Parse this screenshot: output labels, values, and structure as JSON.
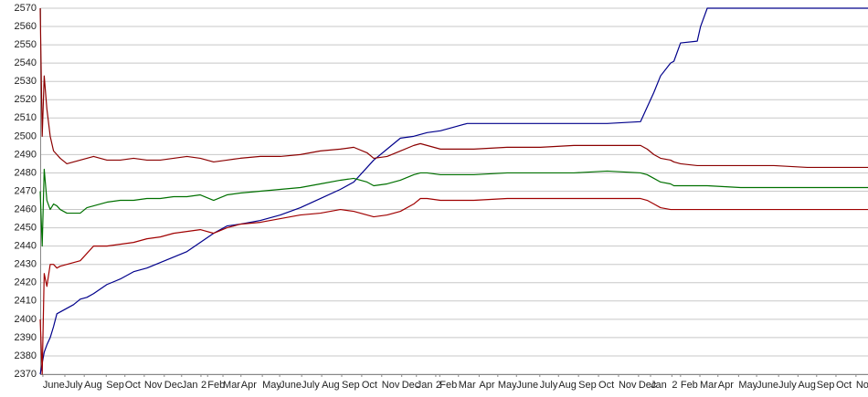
{
  "chart_data": {
    "type": "line",
    "xlim": [
      0,
      1241
    ],
    "ylim": [
      2370,
      2570
    ],
    "yticks": [
      2370,
      2380,
      2390,
      2400,
      2410,
      2420,
      2430,
      2440,
      2450,
      2460,
      2470,
      2480,
      2490,
      2500,
      2510,
      2520,
      2530,
      2540,
      2550,
      2560,
      2570
    ],
    "xticks": [
      {
        "value": 4,
        "label": "June"
      },
      {
        "value": 37,
        "label": "July"
      },
      {
        "value": 66,
        "label": "Aug"
      },
      {
        "value": 99,
        "label": "Sep"
      },
      {
        "value": 127,
        "label": "Oct"
      },
      {
        "value": 156,
        "label": "Nov"
      },
      {
        "value": 186,
        "label": "Dec"
      },
      {
        "value": 212,
        "label": "Jan"
      },
      {
        "value": 241,
        "label": "2"
      },
      {
        "value": 251,
        "label": "Feb"
      },
      {
        "value": 274,
        "label": "Mar"
      },
      {
        "value": 301,
        "label": "Apr"
      },
      {
        "value": 333,
        "label": "May"
      },
      {
        "value": 359,
        "label": "June"
      },
      {
        "value": 392,
        "label": "July"
      },
      {
        "value": 422,
        "label": "Aug"
      },
      {
        "value": 452,
        "label": "Sep"
      },
      {
        "value": 482,
        "label": "Oct"
      },
      {
        "value": 512,
        "label": "Nov"
      },
      {
        "value": 542,
        "label": "Dec"
      },
      {
        "value": 564,
        "label": "Jan"
      },
      {
        "value": 593,
        "label": "2"
      },
      {
        "value": 599,
        "label": "Feb"
      },
      {
        "value": 627,
        "label": "Mar"
      },
      {
        "value": 658,
        "label": "Apr"
      },
      {
        "value": 686,
        "label": "May"
      },
      {
        "value": 714,
        "label": "June"
      },
      {
        "value": 749,
        "label": "July"
      },
      {
        "value": 777,
        "label": "Aug"
      },
      {
        "value": 807,
        "label": "Sep"
      },
      {
        "value": 837,
        "label": "Oct"
      },
      {
        "value": 867,
        "label": "Nov"
      },
      {
        "value": 897,
        "label": "Dec"
      },
      {
        "value": 915,
        "label": "Jan"
      },
      {
        "value": 947,
        "label": "2"
      },
      {
        "value": 960,
        "label": "Feb"
      },
      {
        "value": 989,
        "label": "Mar"
      },
      {
        "value": 1016,
        "label": "Apr"
      },
      {
        "value": 1047,
        "label": "May"
      },
      {
        "value": 1074,
        "label": "June"
      },
      {
        "value": 1107,
        "label": "July"
      },
      {
        "value": 1136,
        "label": "Aug"
      },
      {
        "value": 1164,
        "label": "Sep"
      },
      {
        "value": 1193,
        "label": "Oct"
      },
      {
        "value": 1223,
        "label": "No"
      }
    ],
    "grid": true,
    "x": [
      0,
      3,
      6,
      10,
      15,
      20,
      25,
      30,
      40,
      50,
      60,
      70,
      80,
      100,
      120,
      140,
      160,
      180,
      200,
      220,
      240,
      260,
      280,
      300,
      330,
      360,
      390,
      420,
      450,
      470,
      490,
      500,
      520,
      540,
      560,
      570,
      580,
      600,
      620,
      640,
      650,
      700,
      750,
      800,
      850,
      900,
      910,
      920,
      930,
      945,
      950,
      960,
      985,
      990,
      1000,
      1050,
      1100,
      1150,
      1200,
      1241
    ],
    "series": [
      {
        "color": "#00008b",
        "values": [
          2370,
          2376,
          2382,
          2386,
          2390,
          2396,
          2403,
          2404,
          2406,
          2408,
          2411,
          2412,
          2414,
          2419,
          2422,
          2426,
          2428,
          2431,
          2434,
          2437,
          2442,
          2447,
          2451,
          2452,
          2454,
          2457,
          2461,
          2466,
          2471,
          2475,
          2483,
          2487,
          2493,
          2499,
          2500,
          2501,
          2502,
          2503,
          2505,
          2507,
          2507,
          2507,
          2507,
          2507,
          2507,
          2508,
          2516,
          2524,
          2533,
          2540,
          2541,
          2551,
          2552,
          2560,
          2570,
          2570,
          2570,
          2570,
          2570,
          2570
        ]
      },
      {
        "color": "#8b0000",
        "values": [
          2570,
          2500,
          2533,
          2515,
          2500,
          2492,
          2490,
          2488,
          2485,
          2486,
          2487,
          2488,
          2489,
          2487,
          2487,
          2488,
          2487,
          2487,
          2488,
          2489,
          2488,
          2486,
          2487,
          2488,
          2489,
          2489,
          2490,
          2492,
          2493,
          2494,
          2491,
          2488,
          2489,
          2492,
          2495,
          2496,
          2495,
          2493,
          2493,
          2493,
          2493,
          2494,
          2494,
          2495,
          2495,
          2495,
          2493,
          2490,
          2488,
          2487,
          2486,
          2485,
          2484,
          2484,
          2484,
          2484,
          2484,
          2483,
          2483,
          2483
        ]
      },
      {
        "color": "#007000",
        "values": [
          2470,
          2440,
          2482,
          2465,
          2460,
          2463,
          2462,
          2460,
          2458,
          2458,
          2458,
          2461,
          2462,
          2464,
          2465,
          2465,
          2466,
          2466,
          2467,
          2467,
          2468,
          2465,
          2468,
          2469,
          2470,
          2471,
          2472,
          2474,
          2476,
          2477,
          2475,
          2473,
          2474,
          2476,
          2479,
          2480,
          2480,
          2479,
          2479,
          2479,
          2479,
          2480,
          2480,
          2480,
          2481,
          2480,
          2479,
          2477,
          2475,
          2474,
          2473,
          2473,
          2473,
          2473,
          2473,
          2472,
          2472,
          2472,
          2472,
          2472
        ]
      },
      {
        "color": "#a00000",
        "values": [
          2400,
          2370,
          2425,
          2418,
          2430,
          2430,
          2428,
          2429,
          2430,
          2431,
          2432,
          2436,
          2440,
          2440,
          2441,
          2442,
          2444,
          2445,
          2447,
          2448,
          2449,
          2447,
          2450,
          2452,
          2453,
          2455,
          2457,
          2458,
          2460,
          2459,
          2457,
          2456,
          2457,
          2459,
          2463,
          2466,
          2466,
          2465,
          2465,
          2465,
          2465,
          2466,
          2466,
          2466,
          2466,
          2466,
          2465,
          2463,
          2461,
          2460,
          2460,
          2460,
          2460,
          2460,
          2460,
          2460,
          2460,
          2460,
          2460,
          2460
        ]
      }
    ]
  }
}
